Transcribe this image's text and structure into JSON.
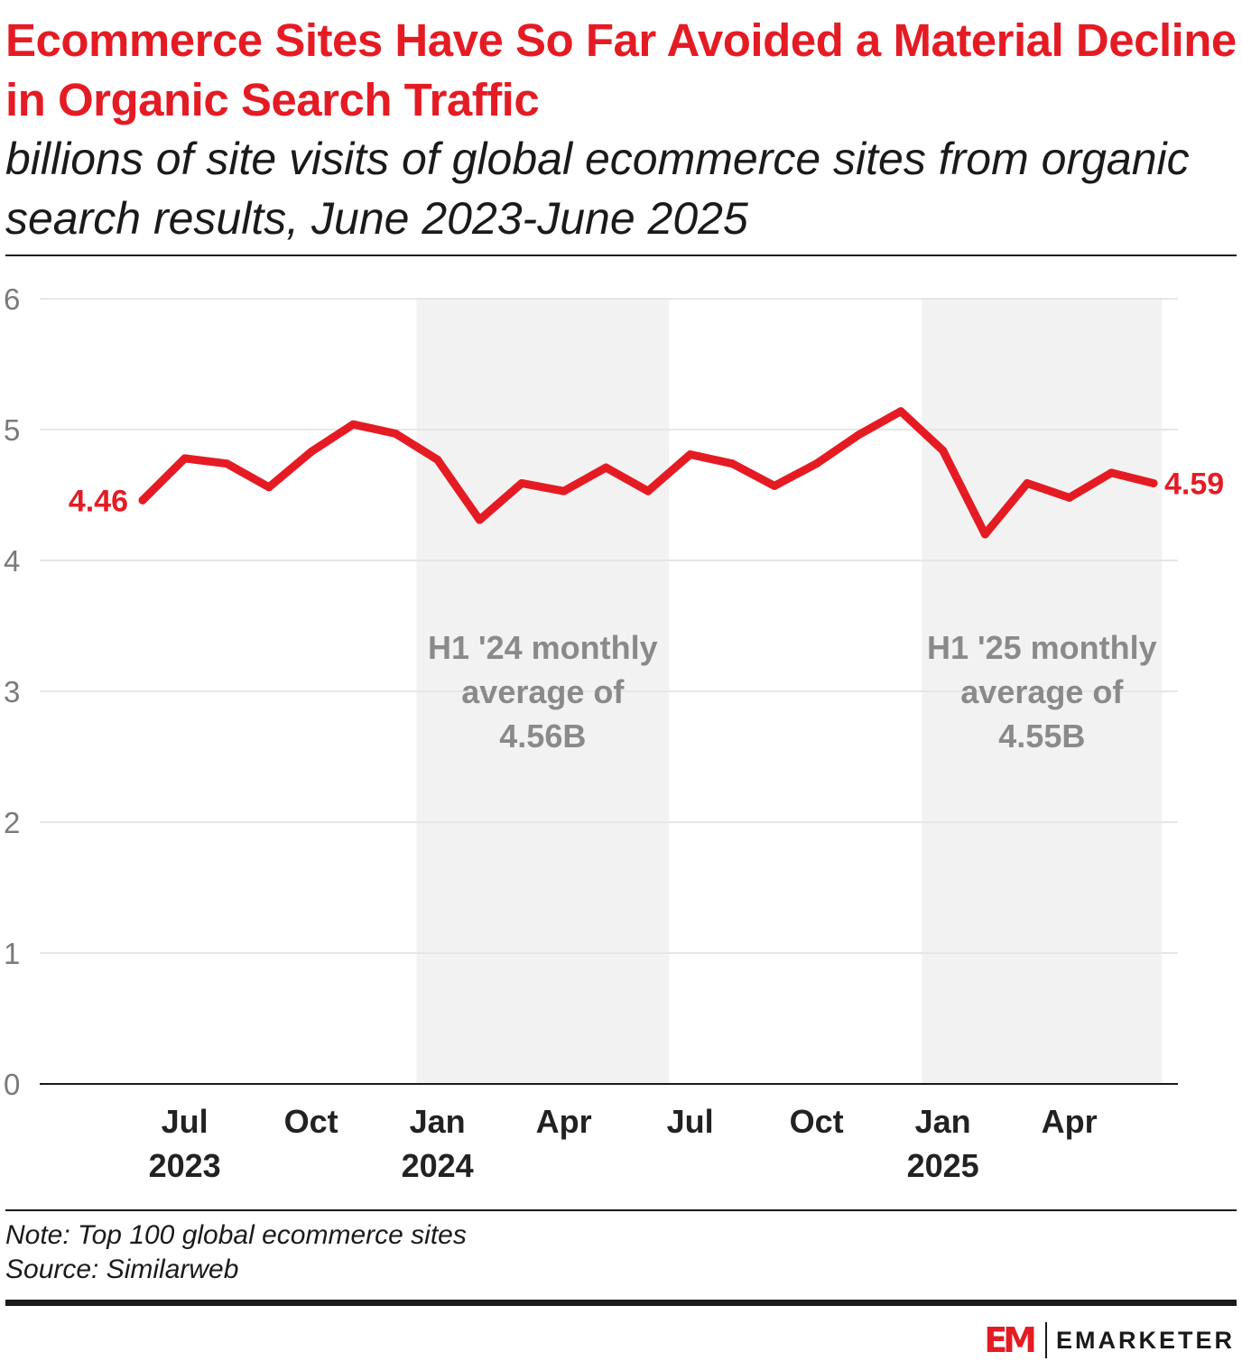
{
  "header": {
    "title": "Ecommerce Sites Have So Far Avoided a Material Decline in Organic Search Traffic",
    "subtitle": "billions of site visits of global ecommerce sites from organic search results, June 2023-June 2025"
  },
  "chart_data": {
    "type": "line",
    "title": "Ecommerce Sites Have So Far Avoided a Material Decline in Organic Search Traffic",
    "subtitle": "billions of site visits of global ecommerce sites from organic search results, June 2023-June 2025",
    "xlabel": "",
    "ylabel": "",
    "ylim": [
      0,
      6
    ],
    "yticks": [
      0,
      1,
      2,
      3,
      4,
      5,
      6
    ],
    "grid": true,
    "x": [
      "Jun 2023",
      "Jul 2023",
      "Aug 2023",
      "Sep 2023",
      "Oct 2023",
      "Nov 2023",
      "Dec 2023",
      "Jan 2024",
      "Feb 2024",
      "Mar 2024",
      "Apr 2024",
      "May 2024",
      "Jun 2024",
      "Jul 2024",
      "Aug 2024",
      "Sep 2024",
      "Oct 2024",
      "Nov 2024",
      "Dec 2024",
      "Jan 2025",
      "Feb 2025",
      "Mar 2025",
      "Apr 2025",
      "May 2025",
      "Jun 2025"
    ],
    "x_tick_labels": [
      {
        "index": 1,
        "line1": "Jul",
        "line2": "2023"
      },
      {
        "index": 4,
        "line1": "Oct",
        "line2": ""
      },
      {
        "index": 7,
        "line1": "Jan",
        "line2": "2024"
      },
      {
        "index": 10,
        "line1": "Apr",
        "line2": ""
      },
      {
        "index": 13,
        "line1": "Jul",
        "line2": ""
      },
      {
        "index": 16,
        "line1": "Oct",
        "line2": ""
      },
      {
        "index": 19,
        "line1": "Jan",
        "line2": "2025"
      },
      {
        "index": 22,
        "line1": "Apr",
        "line2": ""
      }
    ],
    "series": [
      {
        "name": "Organic search site visits (billions)",
        "color": "#e51b24",
        "values": [
          4.46,
          4.78,
          4.74,
          4.56,
          4.83,
          5.04,
          4.97,
          4.77,
          4.31,
          4.59,
          4.53,
          4.71,
          4.53,
          4.81,
          4.74,
          4.57,
          4.74,
          4.96,
          5.14,
          4.84,
          4.2,
          4.59,
          4.48,
          4.67,
          4.59
        ]
      }
    ],
    "data_labels": [
      {
        "index": 0,
        "text": "4.46",
        "position": "left"
      },
      {
        "index": 24,
        "text": "4.59",
        "position": "right"
      }
    ],
    "shaded_regions": [
      {
        "from_index": 6.5,
        "to_index": 12.5,
        "lines": [
          "H1 '24 monthly",
          "average of",
          "4.56B"
        ],
        "color": "#f2f2f2",
        "text_color": "#8a8a8a"
      },
      {
        "from_index": 18.5,
        "to_index": 24.2,
        "lines": [
          "H1 '25 monthly",
          "average of",
          "4.55B"
        ],
        "color": "#f2f2f2",
        "text_color": "#8a8a8a"
      }
    ]
  },
  "footer": {
    "note": "Note: Top 100 global ecommerce sites",
    "source": "Source: Similarweb",
    "brand_mark": "EM",
    "brand_name": "EMARKETER"
  },
  "colors": {
    "accent": "#e51b24",
    "text": "#1a1a1a",
    "gridline": "#e6e6e6",
    "shade": "#f2f2f2"
  }
}
